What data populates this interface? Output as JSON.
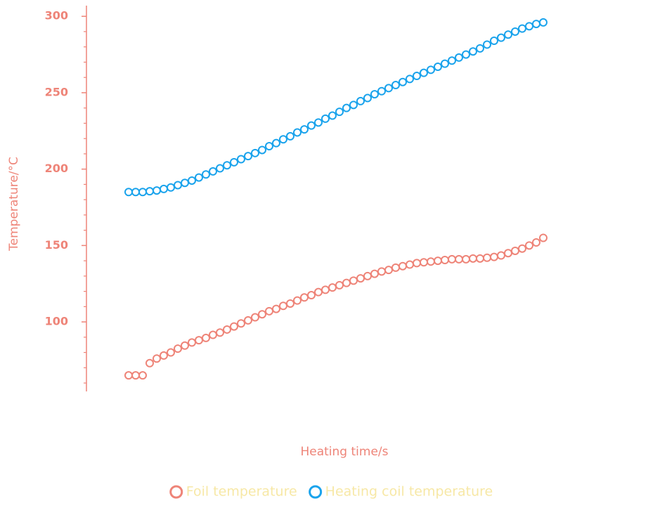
{
  "chart_data": {
    "type": "scatter",
    "y_label": "Temperature/°C",
    "x_label": "Heating time/s",
    "x": [
      0,
      10,
      20,
      30,
      40,
      50,
      60,
      70,
      80,
      90,
      100,
      110,
      120,
      130,
      140,
      150,
      160,
      170,
      180,
      190,
      200,
      210,
      220,
      230,
      240,
      250,
      260,
      270,
      280,
      290,
      300,
      310,
      320,
      330,
      340,
      350,
      360,
      370,
      380,
      390,
      400,
      410,
      420,
      430,
      440,
      450,
      460,
      470,
      480,
      490,
      500,
      510,
      520,
      530,
      540,
      550,
      560,
      570,
      580,
      590
    ],
    "series": [
      {
        "name": "Foil temperature",
        "color": "#ee8478",
        "values": [
          65,
          65,
          65,
          73,
          76,
          78,
          80,
          82.5,
          84.5,
          86.5,
          88,
          89.5,
          91.5,
          93,
          95,
          97,
          99,
          101,
          103,
          105,
          107,
          108.5,
          110.5,
          112,
          114,
          116,
          117.5,
          119.5,
          121,
          122.5,
          124,
          125.5,
          127,
          128.5,
          130,
          131.5,
          133,
          134,
          135.5,
          136.5,
          137.5,
          138.5,
          139,
          139.5,
          140,
          140.5,
          141,
          141,
          141,
          141.5,
          141.5,
          142,
          142.5,
          143.5,
          145,
          146.5,
          148,
          150,
          152,
          155
        ]
      },
      {
        "name": "Heating coil temperature",
        "color": "#1aa3ec",
        "values": [
          185,
          185,
          185,
          185.5,
          186,
          187,
          188,
          189.5,
          191,
          192.5,
          194.5,
          196.5,
          198.5,
          200.5,
          202.5,
          204.5,
          206.5,
          208.5,
          210.5,
          212.5,
          215,
          217,
          219.5,
          221.5,
          224,
          226,
          228.5,
          230.5,
          233,
          235,
          237.5,
          240,
          242,
          244.5,
          246.5,
          249,
          251,
          253,
          255,
          257,
          259,
          261,
          263,
          265,
          267,
          269,
          271,
          273,
          275,
          277,
          279,
          281.5,
          284,
          286,
          288,
          290,
          292,
          293.5,
          295,
          296
        ]
      }
    ],
    "xlim": [
      -60,
      657
    ],
    "ylim": [
      54.5,
      307
    ],
    "yticks": [
      100,
      150,
      200,
      250,
      300
    ],
    "yminorticks": [
      60,
      70,
      80,
      90,
      110,
      120,
      130,
      140,
      160,
      170,
      180,
      190,
      210,
      220,
      230,
      240,
      260,
      270,
      280,
      290
    ],
    "axis_color": "#ee8478",
    "legend_text_color": "#f7e8a6",
    "legend": "bottom"
  }
}
